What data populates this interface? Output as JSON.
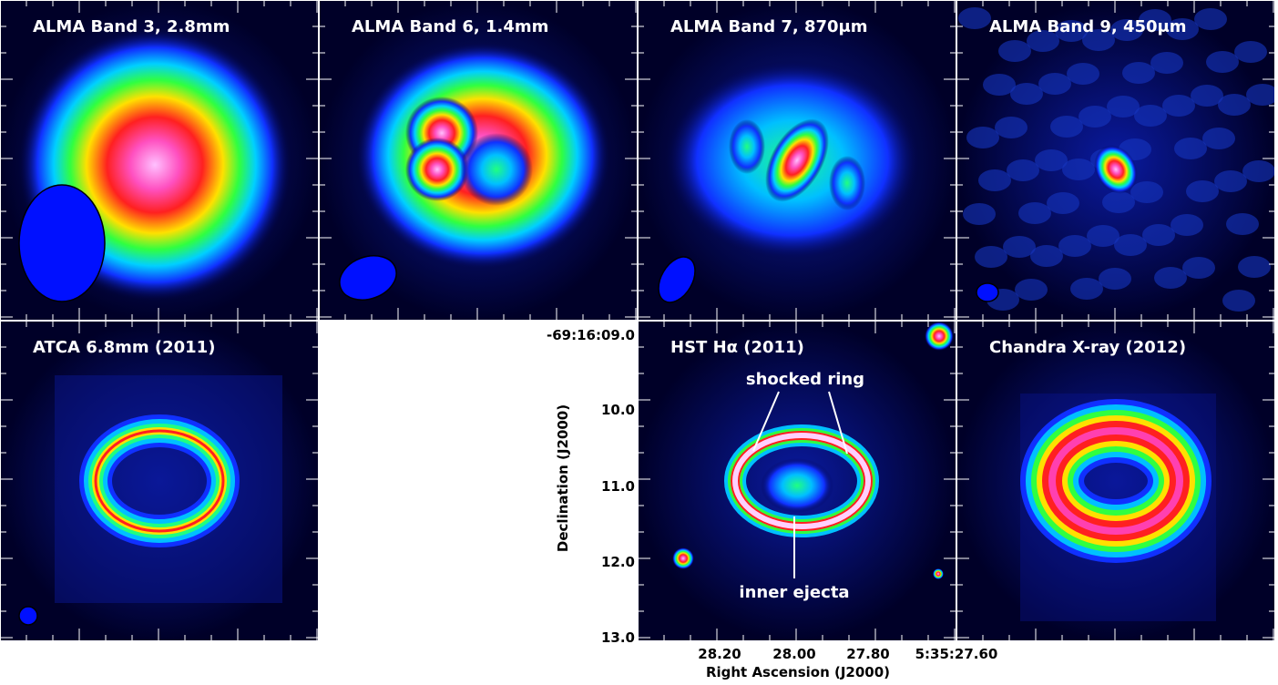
{
  "panels": [
    {
      "title": "ALMA Band 3, 2.8mm"
    },
    {
      "title": "ALMA Band 6, 1.4mm"
    },
    {
      "title": "ALMA Band 7, 870μm"
    },
    {
      "title": "ALMA Band 9, 450μm"
    },
    {
      "title": "ATCA 6.8mm (2011)"
    },
    {
      "title": "HST Hα (2011)"
    },
    {
      "title": "Chandra X-ray (2012)"
    }
  ],
  "axes": {
    "y_label": "Declination (J2000)",
    "y_ticks": [
      "-69:16:09.0",
      "10.0",
      "11.0",
      "12.0",
      "13.0"
    ],
    "x_label": "Right Ascension (J2000)",
    "x_ticks": [
      "28.20",
      "28.00",
      "27.80",
      "5:35:27.60"
    ]
  },
  "annotations": [
    "shocked ring",
    "inner ejecta"
  ]
}
